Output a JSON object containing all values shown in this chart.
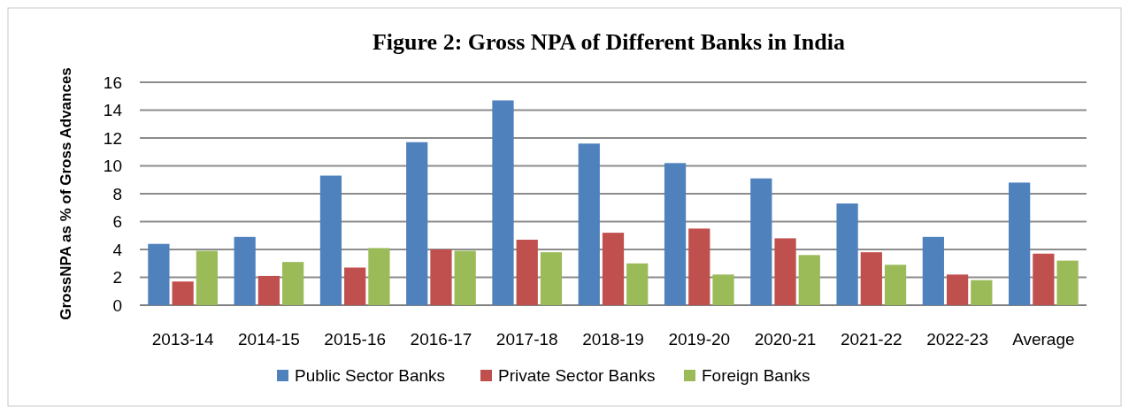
{
  "chart_data": {
    "type": "bar",
    "title": "Figure 2:  Gross NPA of Different Banks in India",
    "ylabel": "GrossNPA as % of Gross Advances",
    "categories": [
      "2013-14",
      "2014-15",
      "2015-16",
      "2016-17",
      "2017-18",
      "2018-19",
      "2019-20",
      "2020-21",
      "2021-22",
      "2022-23",
      "Average"
    ],
    "series": [
      {
        "name": "Public Sector Banks",
        "color": "#4f81bd",
        "values": [
          4.4,
          4.9,
          9.3,
          11.7,
          14.7,
          11.6,
          10.2,
          9.1,
          7.3,
          4.9,
          8.8
        ]
      },
      {
        "name": "Private Sector Banks",
        "color": "#c0504d",
        "values": [
          1.7,
          2.1,
          2.7,
          4.0,
          4.7,
          5.2,
          5.5,
          4.8,
          3.8,
          2.2,
          3.7
        ]
      },
      {
        "name": "Foreign Banks",
        "color": "#9bbb59",
        "values": [
          3.9,
          3.1,
          4.1,
          3.9,
          3.8,
          3.0,
          2.2,
          3.6,
          2.9,
          1.8,
          3.2
        ]
      }
    ],
    "ylim": [
      0,
      16
    ],
    "yticks": [
      0,
      2,
      4,
      6,
      8,
      10,
      12,
      14,
      16
    ],
    "grid": "y",
    "legend": "bottom"
  }
}
